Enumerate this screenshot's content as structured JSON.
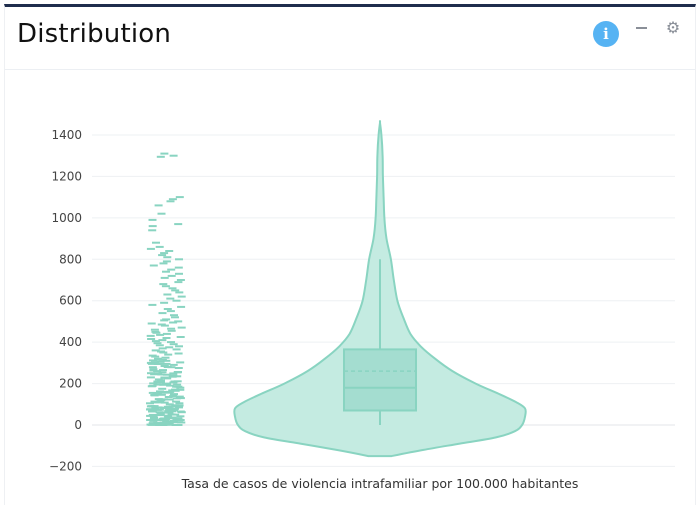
{
  "header": {
    "title": "Distribution",
    "info_icon": "info-icon",
    "minimize_icon": "minimize-icon",
    "settings_icon": "gear-icon"
  },
  "colors": {
    "accent": "#89d4c1",
    "fill": "#c4ebe1",
    "box_fill": "#a4ddd0",
    "info": "#56b3f3",
    "top_border": "#1f2d4d"
  },
  "chart_data": {
    "type": "violin",
    "xlabel": "Tasa de casos de violencia intrafamiliar por 100.000 habitantes",
    "ylabel": "",
    "ylim": [
      -200,
      1400
    ],
    "yticks": [
      1400,
      1200,
      1000,
      800,
      600,
      400,
      200,
      0,
      -200
    ],
    "tick_labels": [
      "1400",
      "1200",
      "1000",
      "800",
      "600",
      "400",
      "200",
      "0",
      "−200"
    ],
    "grid": true,
    "box": {
      "q1": 70,
      "median": 180,
      "mean": 260,
      "q3": 365,
      "lower_whisker": 0,
      "upper_whisker": 800
    },
    "violin_extent": [
      -150,
      1460
    ],
    "density": [
      [
        -150,
        0.08
      ],
      [
        -120,
        0.3
      ],
      [
        -90,
        0.55
      ],
      [
        -60,
        0.8
      ],
      [
        -30,
        0.93
      ],
      [
        0,
        0.98
      ],
      [
        40,
        1.0
      ],
      [
        80,
        1.0
      ],
      [
        110,
        0.94
      ],
      [
        150,
        0.82
      ],
      [
        200,
        0.66
      ],
      [
        260,
        0.5
      ],
      [
        320,
        0.38
      ],
      [
        380,
        0.28
      ],
      [
        440,
        0.21
      ],
      [
        520,
        0.16
      ],
      [
        600,
        0.12
      ],
      [
        700,
        0.095
      ],
      [
        800,
        0.075
      ],
      [
        900,
        0.045
      ],
      [
        1000,
        0.03
      ],
      [
        1100,
        0.025
      ],
      [
        1200,
        0.02
      ],
      [
        1300,
        0.018
      ],
      [
        1400,
        0.01
      ],
      [
        1460,
        0.0
      ]
    ],
    "points": [
      1310,
      1300,
      1295,
      1100,
      1090,
      1080,
      1060,
      1020,
      990,
      970,
      960,
      940,
      880,
      860,
      850,
      840,
      830,
      820,
      810,
      800,
      790,
      780,
      770,
      760,
      750,
      740,
      730,
      720,
      710,
      700,
      690,
      680,
      670,
      660,
      650,
      640,
      630,
      620,
      610,
      600,
      590,
      580,
      570,
      560,
      550,
      540,
      530,
      520,
      510,
      505,
      500,
      495,
      490,
      485,
      480,
      470,
      465,
      460,
      455,
      450,
      445,
      440,
      435,
      430,
      425,
      420,
      415,
      410,
      405,
      400,
      395,
      390,
      385,
      380,
      375,
      370,
      365,
      360,
      355,
      350,
      345,
      340,
      335,
      330,
      325,
      320,
      315,
      310,
      305,
      300,
      295,
      290,
      285,
      280,
      275,
      270,
      265,
      260,
      255,
      250,
      245,
      240,
      235,
      230,
      225,
      220,
      215,
      210,
      205,
      200,
      195,
      190,
      185,
      180,
      175,
      170,
      165,
      160,
      155,
      150,
      145,
      140,
      135,
      130,
      125,
      120,
      115,
      110,
      105,
      100,
      95,
      90,
      85,
      80,
      75,
      70,
      65,
      60,
      55,
      50,
      45,
      40,
      35,
      30,
      25,
      20,
      15,
      10,
      5,
      0
    ]
  }
}
